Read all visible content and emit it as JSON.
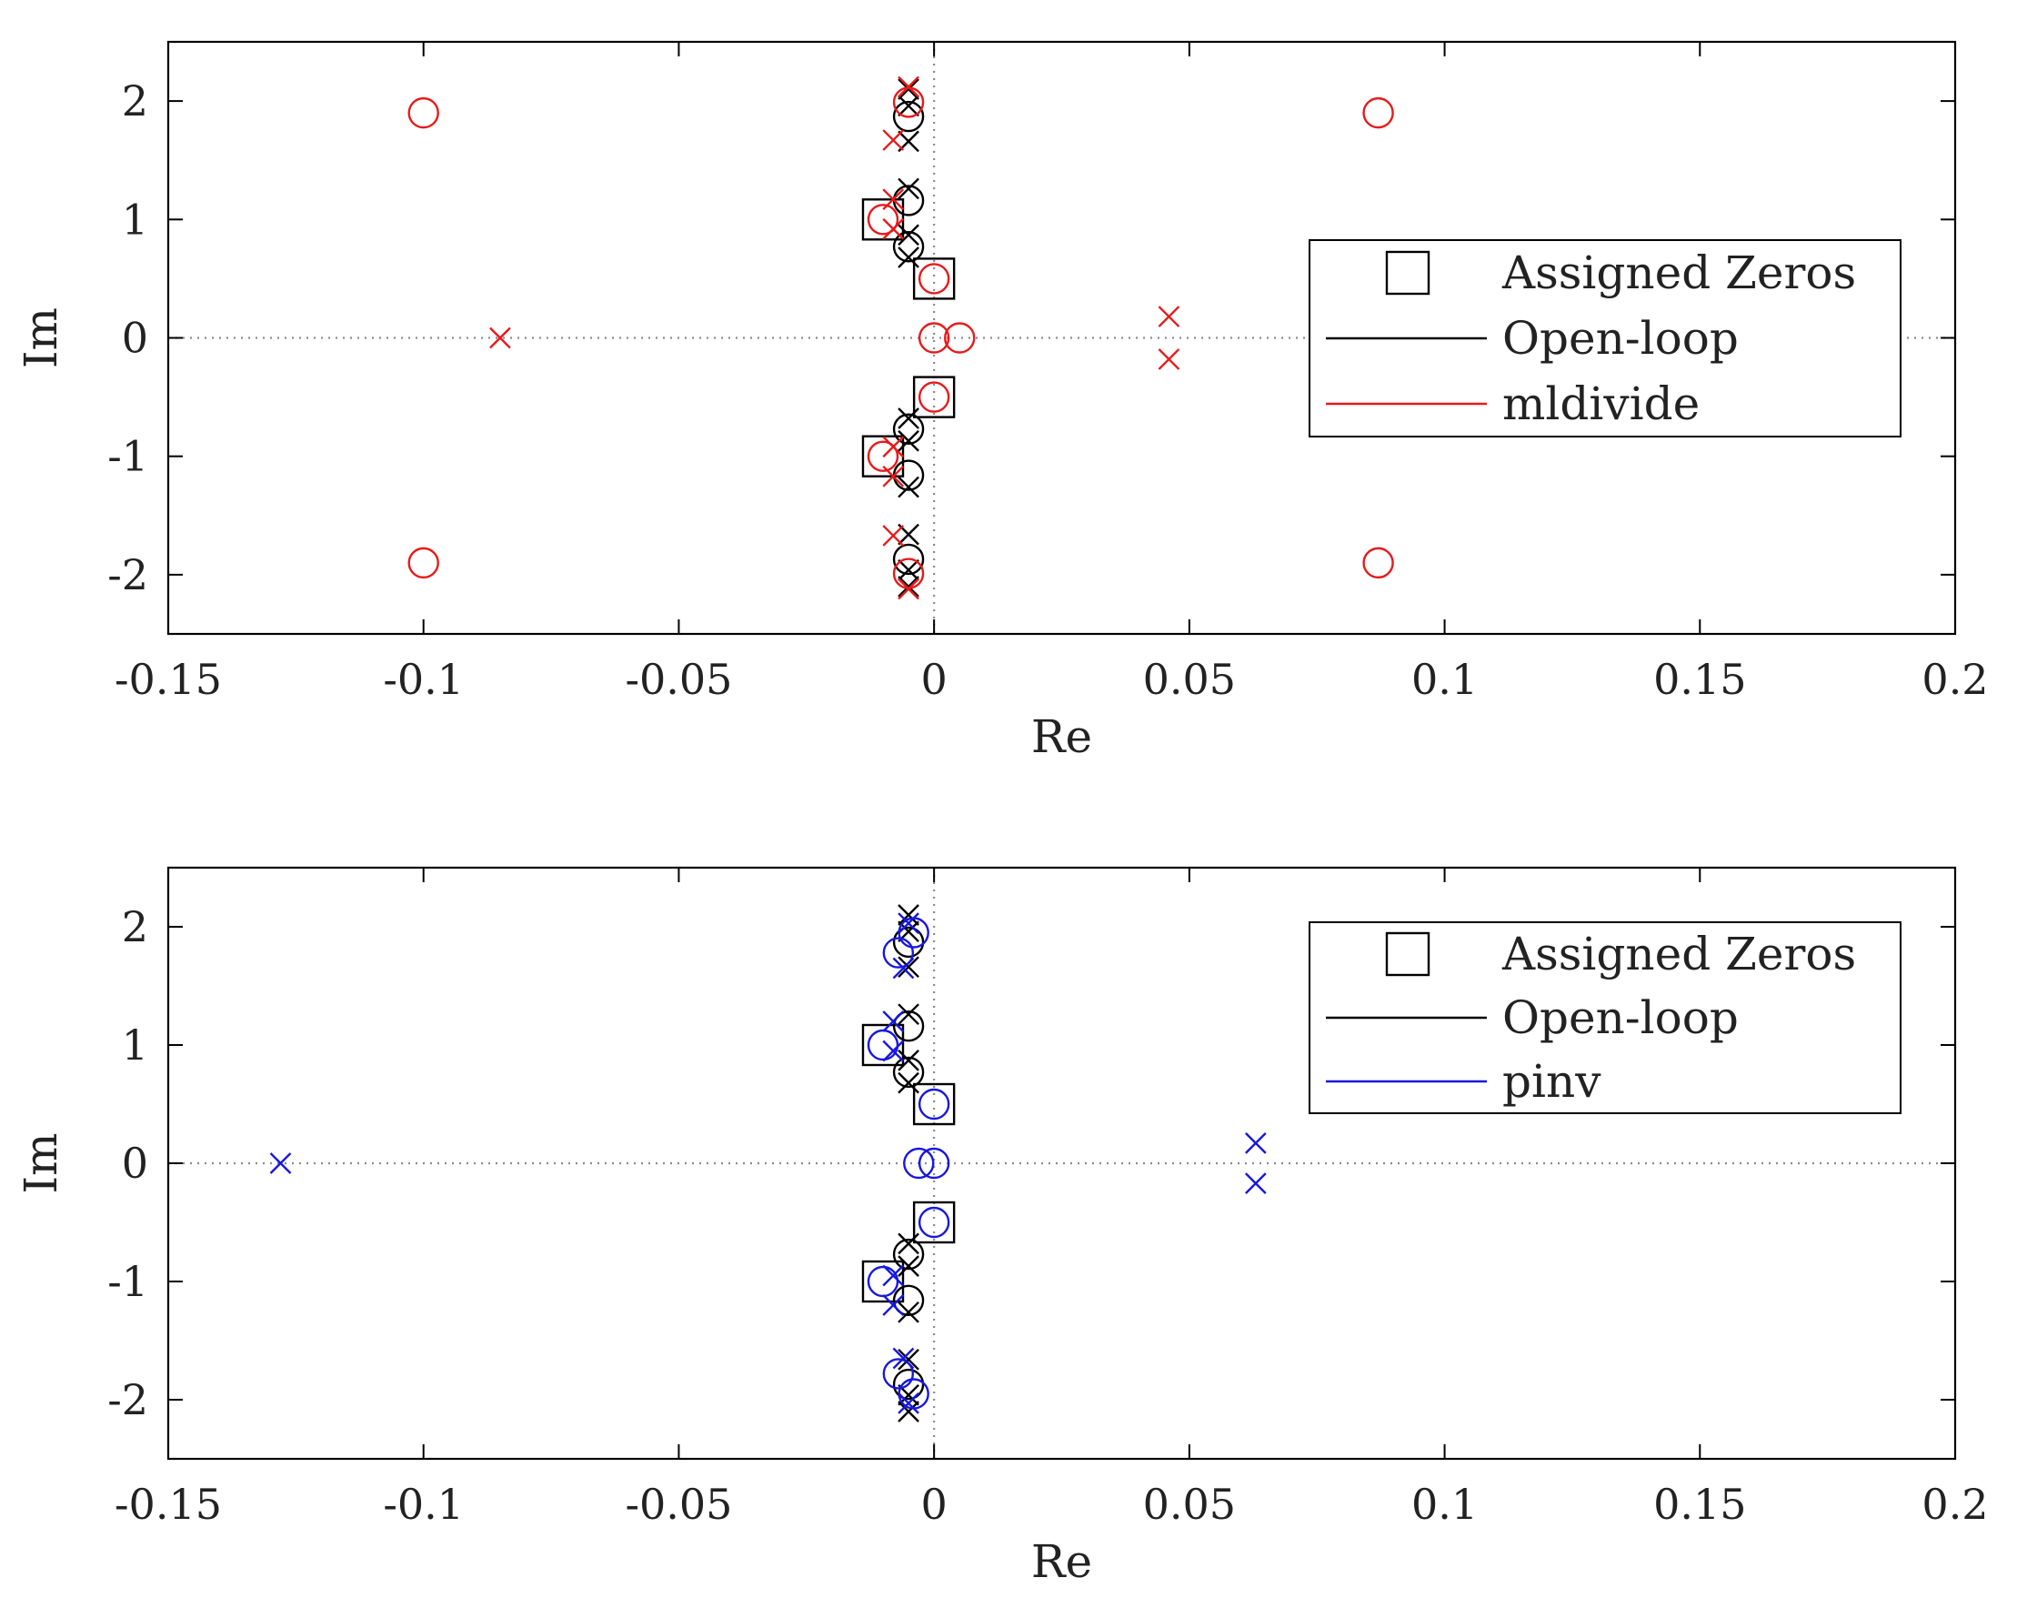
{
  "chart_data": [
    {
      "type": "scatter",
      "title": "",
      "xlabel": "Re",
      "ylabel": "Im",
      "xlim": [
        -0.15,
        0.2
      ],
      "ylim": [
        -2.5,
        2.5
      ],
      "xticks": [
        -0.15,
        -0.1,
        -0.05,
        0,
        0.05,
        0.1,
        0.15,
        0.2
      ],
      "xtick_labels": [
        "-0.15",
        "-0.1",
        "-0.05",
        "0",
        "0.05",
        "0.1",
        "0.15",
        "0.2"
      ],
      "yticks": [
        -2,
        -1,
        0,
        1,
        2
      ],
      "ytick_labels": [
        "-2",
        "-1",
        "0",
        "1",
        "2"
      ],
      "grid": false,
      "reference_lines": "dotted lines at Re = 0 and Im = 0",
      "legend": {
        "placement": "right",
        "entries": [
          {
            "label": "Assigned Zeros",
            "marker": "square",
            "color": "#000000"
          },
          {
            "label": "Open-loop",
            "marker": "line",
            "color": "#000000"
          },
          {
            "label": "mldivide",
            "marker": "line",
            "color": "#e8191a"
          }
        ]
      },
      "series": [
        {
          "name": "Assigned Zeros",
          "marker": "square",
          "color": "#000000",
          "points": [
            [
              -0.01,
              1.0
            ],
            [
              0.0,
              0.5
            ],
            [
              0.0,
              -0.5
            ],
            [
              -0.01,
              -1.0
            ]
          ]
        },
        {
          "name": "Open-loop",
          "marker": "circle",
          "color": "#000000",
          "points": [
            [
              -0.005,
              1.87
            ],
            [
              -0.005,
              1.16
            ],
            [
              -0.005,
              0.77
            ],
            [
              -0.005,
              -0.77
            ],
            [
              -0.005,
              -1.16
            ],
            [
              -0.005,
              -1.87
            ]
          ]
        },
        {
          "name": "Open-loop",
          "marker": "x",
          "color": "#000000",
          "points": [
            [
              -0.005,
              2.1
            ],
            [
              -0.005,
              1.96
            ],
            [
              -0.005,
              1.66
            ],
            [
              -0.005,
              1.26
            ],
            [
              -0.005,
              0.87
            ],
            [
              -0.005,
              0.68
            ],
            [
              -0.005,
              -0.68
            ],
            [
              -0.005,
              -0.87
            ],
            [
              -0.005,
              -1.26
            ],
            [
              -0.005,
              -1.66
            ],
            [
              -0.005,
              -1.96
            ],
            [
              -0.005,
              -2.1
            ]
          ]
        },
        {
          "name": "mldivide",
          "marker": "circle",
          "color": "#e8191a",
          "points": [
            [
              -0.1,
              1.9
            ],
            [
              0.087,
              1.9
            ],
            [
              -0.005,
              1.99
            ],
            [
              -0.01,
              1.0
            ],
            [
              0.0,
              0.5
            ],
            [
              0.0,
              0.0
            ],
            [
              0.005,
              0.0
            ],
            [
              0.0,
              -0.5
            ],
            [
              -0.01,
              -1.0
            ],
            [
              -0.005,
              -1.99
            ],
            [
              -0.1,
              -1.9
            ],
            [
              0.087,
              -1.9
            ]
          ]
        },
        {
          "name": "mldivide",
          "marker": "x",
          "color": "#e8191a",
          "points": [
            [
              -0.005,
              2.12
            ],
            [
              -0.008,
              1.67
            ],
            [
              -0.008,
              1.17
            ],
            [
              -0.008,
              0.92
            ],
            [
              -0.085,
              0.0
            ],
            [
              0.046,
              0.18
            ],
            [
              0.046,
              -0.18
            ],
            [
              -0.008,
              -0.92
            ],
            [
              -0.008,
              -1.17
            ],
            [
              -0.008,
              -1.67
            ],
            [
              -0.005,
              -2.12
            ]
          ]
        }
      ]
    },
    {
      "type": "scatter",
      "title": "",
      "xlabel": "Re",
      "ylabel": "Im",
      "xlim": [
        -0.15,
        0.2
      ],
      "ylim": [
        -2.5,
        2.5
      ],
      "xticks": [
        -0.15,
        -0.1,
        -0.05,
        0,
        0.05,
        0.1,
        0.15,
        0.2
      ],
      "xtick_labels": [
        "-0.15",
        "-0.1",
        "-0.05",
        "0",
        "0.05",
        "0.1",
        "0.15",
        "0.2"
      ],
      "yticks": [
        -2,
        -1,
        0,
        1,
        2
      ],
      "ytick_labels": [
        "-2",
        "-1",
        "0",
        "1",
        "2"
      ],
      "grid": false,
      "reference_lines": "dotted lines at Re = 0 and Im = 0",
      "legend": {
        "placement": "top-right",
        "entries": [
          {
            "label": "Assigned Zeros",
            "marker": "square",
            "color": "#000000"
          },
          {
            "label": "Open-loop",
            "marker": "line",
            "color": "#000000"
          },
          {
            "label": "pinv",
            "marker": "line",
            "color": "#1717e0"
          }
        ]
      },
      "series": [
        {
          "name": "Assigned Zeros",
          "marker": "square",
          "color": "#000000",
          "points": [
            [
              -0.01,
              1.0
            ],
            [
              0.0,
              0.5
            ],
            [
              0.0,
              -0.5
            ],
            [
              -0.01,
              -1.0
            ]
          ]
        },
        {
          "name": "Open-loop",
          "marker": "circle",
          "color": "#000000",
          "points": [
            [
              -0.005,
              1.87
            ],
            [
              -0.005,
              1.16
            ],
            [
              -0.005,
              0.77
            ],
            [
              -0.005,
              -0.77
            ],
            [
              -0.005,
              -1.16
            ],
            [
              -0.005,
              -1.87
            ]
          ]
        },
        {
          "name": "Open-loop",
          "marker": "x",
          "color": "#000000",
          "points": [
            [
              -0.005,
              2.1
            ],
            [
              -0.005,
              1.96
            ],
            [
              -0.005,
              1.66
            ],
            [
              -0.005,
              1.26
            ],
            [
              -0.005,
              0.87
            ],
            [
              -0.005,
              0.68
            ],
            [
              -0.005,
              -0.68
            ],
            [
              -0.005,
              -0.87
            ],
            [
              -0.005,
              -1.26
            ],
            [
              -0.005,
              -1.66
            ],
            [
              -0.005,
              -1.96
            ],
            [
              -0.005,
              -2.1
            ]
          ]
        },
        {
          "name": "pinv",
          "marker": "circle",
          "color": "#1717e0",
          "points": [
            [
              -0.004,
              1.95
            ],
            [
              -0.007,
              1.78
            ],
            [
              -0.01,
              1.0
            ],
            [
              0.0,
              0.5
            ],
            [
              -0.003,
              0.0
            ],
            [
              0.0,
              0.0
            ],
            [
              0.0,
              -0.5
            ],
            [
              -0.01,
              -1.0
            ],
            [
              -0.007,
              -1.78
            ],
            [
              -0.004,
              -1.95
            ]
          ]
        },
        {
          "name": "pinv",
          "marker": "x",
          "color": "#1717e0",
          "points": [
            [
              -0.005,
              2.03
            ],
            [
              -0.006,
              1.65
            ],
            [
              -0.008,
              1.2
            ],
            [
              -0.008,
              0.95
            ],
            [
              -0.128,
              0.0
            ],
            [
              0.063,
              0.17
            ],
            [
              0.063,
              -0.17
            ],
            [
              -0.008,
              -0.95
            ],
            [
              -0.008,
              -1.2
            ],
            [
              -0.006,
              -1.65
            ],
            [
              -0.005,
              -2.03
            ]
          ]
        }
      ]
    }
  ]
}
